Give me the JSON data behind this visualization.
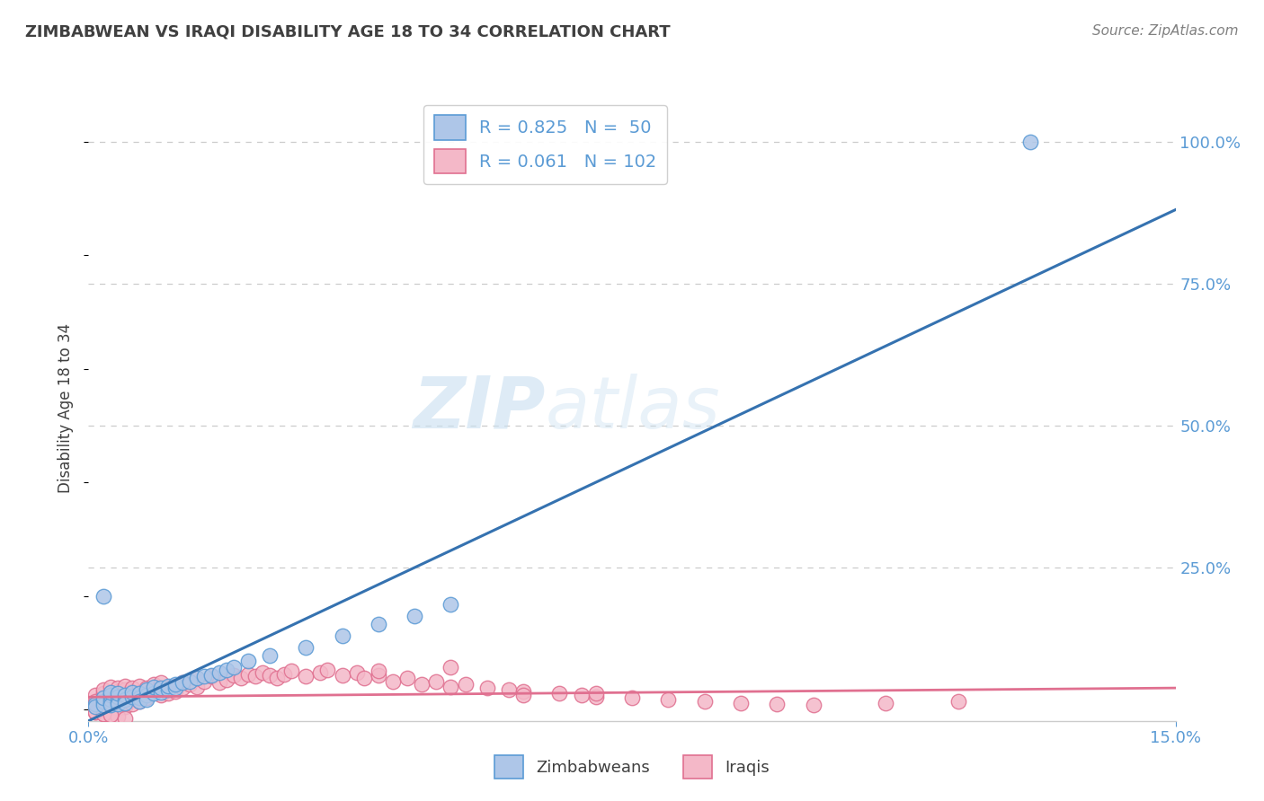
{
  "title": "ZIMBABWEAN VS IRAQI DISABILITY AGE 18 TO 34 CORRELATION CHART",
  "source_text": "Source: ZipAtlas.com",
  "ylabel": "Disability Age 18 to 34",
  "xlim": [
    0.0,
    0.15
  ],
  "ylim": [
    -0.02,
    1.08
  ],
  "ytick_values": [
    0.25,
    0.5,
    0.75,
    1.0
  ],
  "ytick_labels": [
    "25.0%",
    "50.0%",
    "75.0%",
    "100.0%"
  ],
  "blue_R": 0.825,
  "blue_N": 50,
  "pink_R": 0.061,
  "pink_N": 102,
  "blue_fill_color": "#aec6e8",
  "blue_edge_color": "#5b9bd5",
  "pink_fill_color": "#f4b8c8",
  "pink_edge_color": "#e07090",
  "blue_line_color": "#3572b0",
  "pink_line_color": "#e07090",
  "legend_label_1": "Zimbabweans",
  "legend_label_2": "Iraqis",
  "watermark_zip": "ZIP",
  "watermark_atlas": "atlas",
  "background_color": "#ffffff",
  "title_color": "#404040",
  "source_color": "#808080",
  "axis_tick_color": "#5b9bd5",
  "grid_color": "#cccccc",
  "ylabel_color": "#404040",
  "blue_line_x0": 0.0,
  "blue_line_y0": -0.02,
  "blue_line_x1": 0.15,
  "blue_line_y1": 0.88,
  "pink_line_x0": 0.0,
  "pink_line_y0": 0.022,
  "pink_line_x1": 0.15,
  "pink_line_y1": 0.038,
  "blue_scatter_x": [
    0.001,
    0.001,
    0.002,
    0.002,
    0.002,
    0.003,
    0.003,
    0.003,
    0.003,
    0.003,
    0.004,
    0.004,
    0.004,
    0.004,
    0.005,
    0.005,
    0.005,
    0.006,
    0.006,
    0.007,
    0.007,
    0.007,
    0.008,
    0.008,
    0.008,
    0.009,
    0.009,
    0.01,
    0.01,
    0.011,
    0.011,
    0.012,
    0.012,
    0.013,
    0.014,
    0.015,
    0.016,
    0.017,
    0.018,
    0.019,
    0.02,
    0.022,
    0.025,
    0.03,
    0.035,
    0.04,
    0.045,
    0.05,
    0.002,
    0.13
  ],
  "blue_scatter_y": [
    0.01,
    0.005,
    0.015,
    0.008,
    0.02,
    0.012,
    0.018,
    0.025,
    0.008,
    0.03,
    0.015,
    0.022,
    0.01,
    0.028,
    0.018,
    0.025,
    0.012,
    0.022,
    0.03,
    0.02,
    0.028,
    0.015,
    0.025,
    0.035,
    0.018,
    0.028,
    0.04,
    0.03,
    0.038,
    0.035,
    0.042,
    0.038,
    0.045,
    0.048,
    0.05,
    0.055,
    0.058,
    0.06,
    0.065,
    0.07,
    0.075,
    0.085,
    0.095,
    0.11,
    0.13,
    0.15,
    0.165,
    0.185,
    0.2,
    1.0
  ],
  "pink_scatter_x": [
    0.001,
    0.001,
    0.001,
    0.002,
    0.002,
    0.002,
    0.002,
    0.003,
    0.003,
    0.003,
    0.003,
    0.003,
    0.004,
    0.004,
    0.004,
    0.004,
    0.005,
    0.005,
    0.005,
    0.005,
    0.005,
    0.006,
    0.006,
    0.006,
    0.007,
    0.007,
    0.007,
    0.008,
    0.008,
    0.008,
    0.009,
    0.009,
    0.01,
    0.01,
    0.01,
    0.011,
    0.011,
    0.012,
    0.012,
    0.013,
    0.013,
    0.014,
    0.015,
    0.015,
    0.016,
    0.017,
    0.018,
    0.019,
    0.02,
    0.021,
    0.022,
    0.023,
    0.024,
    0.025,
    0.026,
    0.027,
    0.028,
    0.03,
    0.032,
    0.033,
    0.035,
    0.037,
    0.038,
    0.04,
    0.042,
    0.044,
    0.046,
    0.048,
    0.05,
    0.052,
    0.055,
    0.058,
    0.06,
    0.065,
    0.068,
    0.07,
    0.075,
    0.08,
    0.085,
    0.09,
    0.095,
    0.1,
    0.11,
    0.12,
    0.002,
    0.003,
    0.004,
    0.005,
    0.006,
    0.007,
    0.001,
    0.002,
    0.003,
    0.004,
    0.005,
    0.001,
    0.002,
    0.003,
    0.04,
    0.05,
    0.06,
    0.07
  ],
  "pink_scatter_y": [
    0.025,
    0.015,
    0.008,
    0.028,
    0.02,
    0.012,
    0.035,
    0.018,
    0.025,
    0.01,
    0.03,
    0.04,
    0.022,
    0.032,
    0.015,
    0.038,
    0.028,
    0.035,
    0.02,
    0.042,
    0.012,
    0.032,
    0.025,
    0.038,
    0.03,
    0.022,
    0.042,
    0.028,
    0.038,
    0.02,
    0.032,
    0.045,
    0.035,
    0.025,
    0.048,
    0.038,
    0.028,
    0.042,
    0.032,
    0.048,
    0.038,
    0.045,
    0.04,
    0.055,
    0.05,
    0.058,
    0.048,
    0.052,
    0.06,
    0.055,
    0.062,
    0.058,
    0.065,
    0.06,
    0.055,
    0.062,
    0.068,
    0.058,
    0.065,
    0.07,
    0.06,
    0.065,
    0.055,
    0.06,
    0.05,
    0.055,
    0.045,
    0.05,
    0.04,
    0.045,
    0.038,
    0.035,
    0.032,
    0.028,
    0.025,
    0.022,
    0.02,
    0.018,
    0.015,
    0.012,
    0.01,
    0.008,
    0.012,
    0.015,
    0.005,
    0.008,
    0.002,
    0.005,
    0.01,
    0.015,
    -0.005,
    -0.008,
    -0.01,
    -0.012,
    -0.015,
    -0.005,
    -0.008,
    -0.01,
    0.068,
    0.075,
    0.025,
    0.028
  ]
}
